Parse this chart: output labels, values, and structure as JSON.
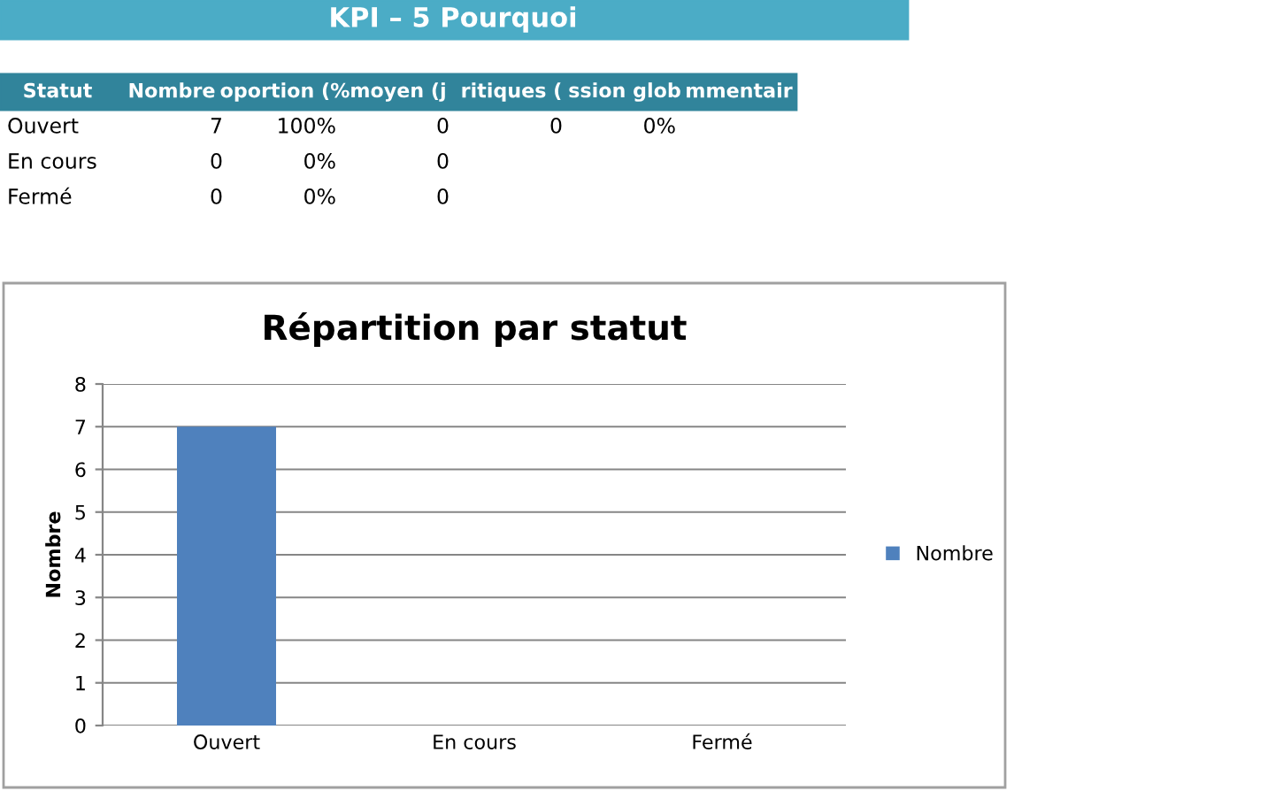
{
  "chart_data": {
    "type": "bar",
    "title": "Répartition par statut",
    "ylabel": "Nombre",
    "categories": [
      "Ouvert",
      "En cours",
      "Fermé"
    ],
    "series": [
      {
        "name": "Nombre",
        "color": "#4f81bd",
        "values": [
          7,
          0,
          0
        ]
      }
    ],
    "ylim": [
      0,
      8
    ],
    "yticks": [
      0,
      1,
      2,
      3,
      4,
      5,
      6,
      7,
      8
    ],
    "grid": "y",
    "legend": "right",
    "annotations": [
      "KPI – 5 Pourquoi",
      "Statut\tNombre\toportion (%\tmoyen (j\tritiques (\tssion glob\tmmentair",
      "Ouvert\t7\t100%\t0\t0\t0%",
      "En cours\t0\t0%\t0",
      "Fermé\t0\t0%\t0"
    ]
  }
}
